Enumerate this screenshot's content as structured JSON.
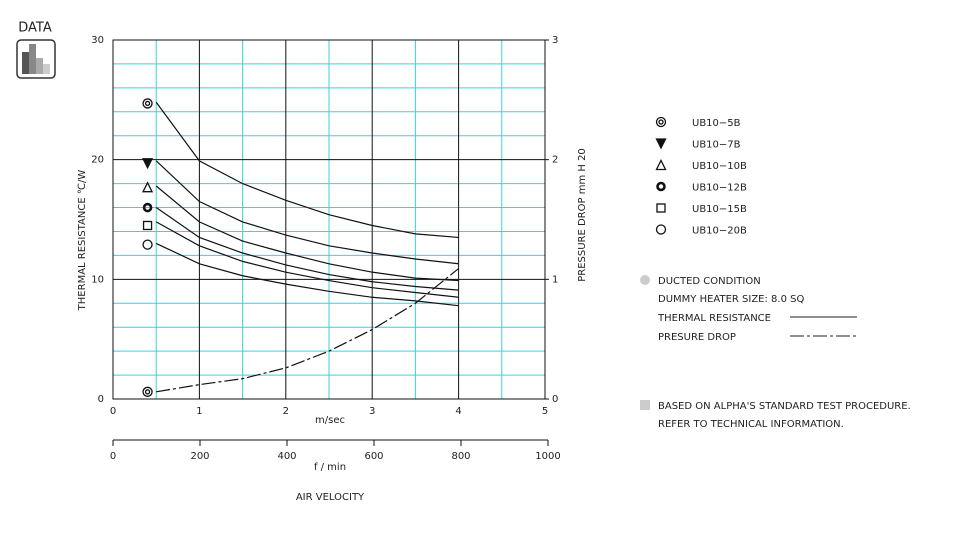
{
  "header": {
    "title": "DATA"
  },
  "chart_data": {
    "type": "line",
    "ylabel": "THERMAL RESISTANCE ℃/W",
    "y2label": "PRESSURE DROP mm H 20",
    "xlabel": "m/sec",
    "x2label": "f / min",
    "axis_title": "AIR VELOCITY",
    "xlim": [
      0,
      5
    ],
    "xticks": [
      0,
      1,
      2,
      3,
      4,
      5
    ],
    "x2lim": [
      0,
      1000
    ],
    "x2ticks": [
      0,
      200,
      400,
      600,
      800,
      1000
    ],
    "ylim": [
      0,
      30
    ],
    "yticks": [
      0,
      10,
      20,
      30
    ],
    "y2lim": [
      0,
      3
    ],
    "y2ticks": [
      0,
      1,
      2,
      3
    ],
    "minor_xgrid": [
      0.5,
      1.5,
      2.5,
      3.5,
      4.5
    ],
    "minor_ygrid": [
      2,
      4,
      6,
      8,
      12,
      14,
      16,
      18,
      22,
      24,
      26,
      28
    ],
    "grid_color": "#33d6e0",
    "x": [
      0.5,
      1,
      1.5,
      2,
      2.5,
      3,
      3.5,
      4
    ],
    "series": [
      {
        "name": "UB10−5B",
        "symbol": "double-circle",
        "marker": {
          "x": 0.4,
          "y": 24.7
        },
        "values": [
          24.8,
          19.9,
          18.0,
          16.6,
          15.4,
          14.5,
          13.8,
          13.5
        ]
      },
      {
        "name": "UB10−7B",
        "symbol": "triangle-down-filled",
        "marker": {
          "x": 0.4,
          "y": 19.7
        },
        "values": [
          19.9,
          16.5,
          14.8,
          13.7,
          12.8,
          12.2,
          11.7,
          11.3
        ]
      },
      {
        "name": "UB10−10B",
        "symbol": "triangle",
        "marker": {
          "x": 0.4,
          "y": 17.7
        },
        "values": [
          17.8,
          14.8,
          13.2,
          12.2,
          11.3,
          10.6,
          10.1,
          9.9
        ]
      },
      {
        "name": "UB10−12B",
        "symbol": "bold-circle",
        "marker": {
          "x": 0.4,
          "y": 16.0
        },
        "values": [
          16.0,
          13.5,
          12.2,
          11.2,
          10.4,
          9.8,
          9.4,
          9.1
        ]
      },
      {
        "name": "UB10−15B",
        "symbol": "square",
        "marker": {
          "x": 0.4,
          "y": 14.5
        },
        "values": [
          14.8,
          12.8,
          11.5,
          10.6,
          9.9,
          9.3,
          8.9,
          8.5
        ]
      },
      {
        "name": "UB10−20B",
        "symbol": "circle",
        "marker": {
          "x": 0.4,
          "y": 12.9
        },
        "values": [
          13.0,
          11.3,
          10.3,
          9.6,
          9.0,
          8.5,
          8.2,
          7.8
        ]
      }
    ],
    "pressure": {
      "axis": "y2",
      "symbol": "double-circle",
      "marker": {
        "x": 0.4,
        "y": 0.06
      },
      "values": [
        0.06,
        0.12,
        0.17,
        0.26,
        0.4,
        0.58,
        0.8,
        1.09
      ]
    }
  },
  "notes": {
    "condition": "DUCTED CONDITION",
    "heater": "DUMMY HEATER SIZE: 8.0 SQ",
    "key_thermal": "THERMAL RESISTANCE",
    "key_pressure": "PRESURE DROP",
    "procedure": "BASED ON ALPHA'S STANDARD TEST PROCEDURE.",
    "refer": "REFER TO TECHNICAL INFORMATION."
  }
}
